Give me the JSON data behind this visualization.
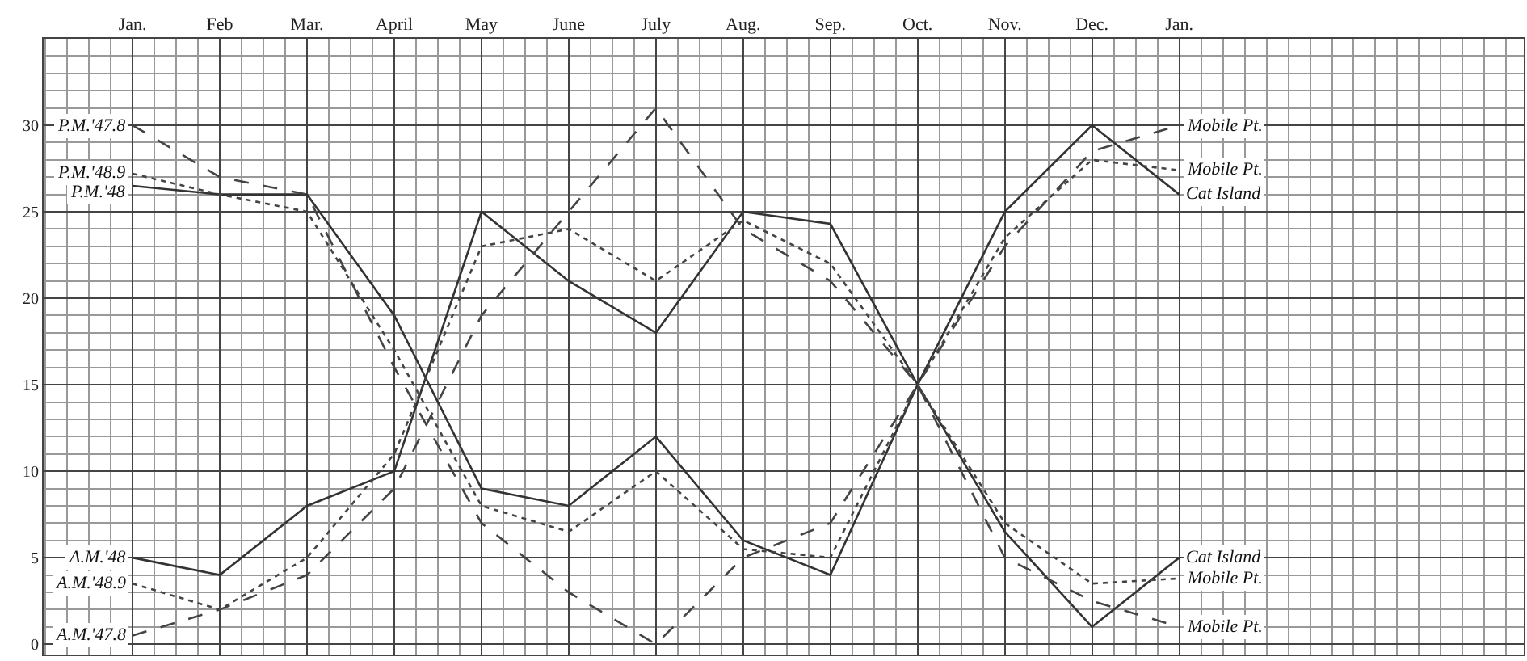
{
  "chart_data": {
    "type": "line",
    "categories": [
      "Jan.",
      "Feb",
      "Mar.",
      "April",
      "May",
      "June",
      "July",
      "Aug.",
      "Sep.",
      "Oct.",
      "Nov.",
      "Dec.",
      "Jan."
    ],
    "series": [
      {
        "name": "P.M.'48",
        "color": "#333333",
        "line_style": "solid",
        "values": [
          26.5,
          26,
          26,
          19,
          9,
          8,
          12,
          6,
          4,
          15,
          25,
          30,
          26
        ]
      },
      {
        "name": "P.M.'48.9",
        "color": "#444444",
        "line_style": "dotted",
        "values": [
          27.2,
          26,
          25,
          17,
          8,
          6.5,
          10,
          5.5,
          5,
          15,
          23.5,
          28,
          27.4
        ]
      },
      {
        "name": "P.M.'47.8",
        "color": "#444444",
        "line_style": "dashed",
        "values": [
          30,
          27,
          26,
          16,
          7,
          3,
          0,
          5,
          7,
          15,
          23,
          28.5,
          30
        ]
      },
      {
        "name": "A.M.'48",
        "color": "#333333",
        "line_style": "solid",
        "values": [
          5,
          4,
          8,
          10,
          25,
          21,
          18,
          25,
          24.3,
          15,
          6.5,
          1,
          5
        ]
      },
      {
        "name": "A.M.'48.9",
        "color": "#444444",
        "line_style": "dotted",
        "values": [
          3.5,
          2,
          5,
          11,
          23,
          24,
          21,
          24.5,
          22,
          15,
          7,
          3.5,
          3.8
        ]
      },
      {
        "name": "A.M.'47.8",
        "color": "#444444",
        "line_style": "dashed",
        "values": [
          0.5,
          2,
          4,
          9,
          19,
          25,
          31,
          24,
          21,
          15,
          5,
          2.5,
          1
        ]
      }
    ],
    "ylim": [
      -0.6,
      35
    ],
    "yticks": [
      0,
      5,
      10,
      15,
      20,
      25,
      30
    ],
    "grid": true,
    "legend": false,
    "marker": "none",
    "annotations": [
      "Cat Island",
      "Mobile Pt.",
      "Mobile Pt.",
      "Cat Island",
      "Mobile Pt.",
      "Mobile Pt."
    ]
  }
}
